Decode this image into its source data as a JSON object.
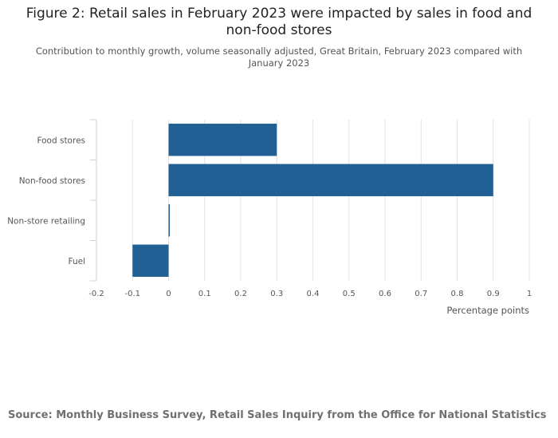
{
  "chart_data": {
    "type": "bar",
    "orientation": "horizontal",
    "title": "Figure 2: Retail sales in February 2023 were impacted by sales in food and non-food stores",
    "subtitle": "Contribution to monthly growth, volume seasonally adjusted, Great Britain, February 2023 compared with January 2023",
    "categories": [
      "Food stores",
      "Non-food stores",
      "Non-store retailing",
      "Fuel"
    ],
    "values": [
      0.3,
      0.9,
      0.0,
      -0.1
    ],
    "xlabel": "Percentage points",
    "ylabel": "",
    "xlim": [
      -0.2,
      1
    ],
    "xticks": [
      "-0.2",
      "-0.1",
      "0",
      "0.1",
      "0.2",
      "0.3",
      "0.4",
      "0.5",
      "0.6",
      "0.7",
      "0.8",
      "0.9",
      "1"
    ],
    "grid": true,
    "bar_color": "#206095",
    "source": "Source: Monthly Business Survey, Retail Sales Inquiry from the Office for National Statistics"
  }
}
